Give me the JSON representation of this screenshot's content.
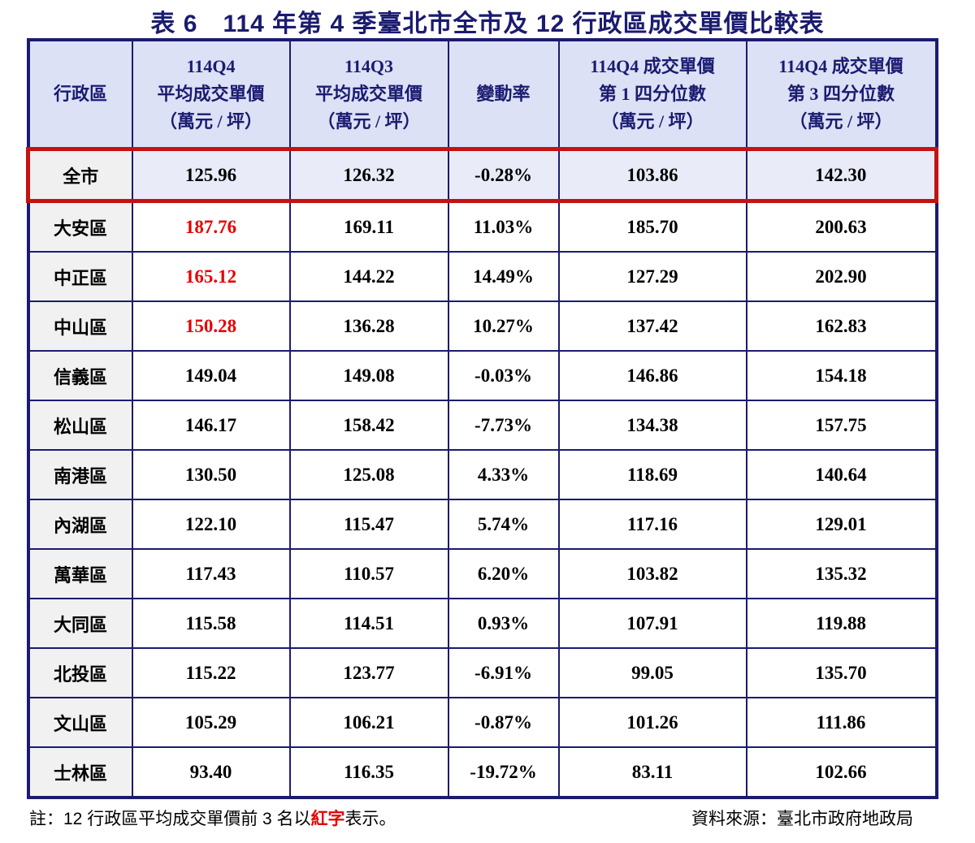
{
  "title": "表 6　114 年第 4 季臺北市全市及 12 行政區成交單價比較表",
  "colors": {
    "navy_border": "#1b1b70",
    "header_bg": "#dce1f6",
    "header_text": "#1b1b70",
    "district_cell_bg": "#f1f1f1",
    "citywide_row_bg": "#e9ecf8",
    "highlight_border_red": "#c41212",
    "top3_text_red": "#e60000"
  },
  "table": {
    "headers": [
      {
        "id": "district",
        "lines": [
          "行政區"
        ]
      },
      {
        "id": "q4-avg-price",
        "lines": [
          "114Q4",
          "平均成交單價",
          "（萬元 / 坪）"
        ]
      },
      {
        "id": "q3-avg-price",
        "lines": [
          "114Q3",
          "平均成交單價",
          "（萬元 / 坪）"
        ]
      },
      {
        "id": "change-rate",
        "lines": [
          "變動率"
        ]
      },
      {
        "id": "q4-first-quartile",
        "lines": [
          "114Q4 成交單價",
          "第 1 四分位數",
          "（萬元 / 坪）"
        ]
      },
      {
        "id": "q4-third-quartile",
        "lines": [
          "114Q4 成交單價",
          "第 3 四分位數",
          "（萬元 / 坪）"
        ]
      }
    ],
    "rows": [
      {
        "district": "全市",
        "q4_avg": "125.96",
        "q3_avg": "126.32",
        "change": "-0.28%",
        "q1_quartile": "103.86",
        "q3_quartile": "142.30",
        "highlight": true,
        "top3": false
      },
      {
        "district": "大安區",
        "q4_avg": "187.76",
        "q3_avg": "169.11",
        "change": "11.03%",
        "q1_quartile": "185.70",
        "q3_quartile": "200.63",
        "highlight": false,
        "top3": true
      },
      {
        "district": "中正區",
        "q4_avg": "165.12",
        "q3_avg": "144.22",
        "change": "14.49%",
        "q1_quartile": "127.29",
        "q3_quartile": "202.90",
        "highlight": false,
        "top3": true
      },
      {
        "district": "中山區",
        "q4_avg": "150.28",
        "q3_avg": "136.28",
        "change": "10.27%",
        "q1_quartile": "137.42",
        "q3_quartile": "162.83",
        "highlight": false,
        "top3": true
      },
      {
        "district": "信義區",
        "q4_avg": "149.04",
        "q3_avg": "149.08",
        "change": "-0.03%",
        "q1_quartile": "146.86",
        "q3_quartile": "154.18",
        "highlight": false,
        "top3": false
      },
      {
        "district": "松山區",
        "q4_avg": "146.17",
        "q3_avg": "158.42",
        "change": "-7.73%",
        "q1_quartile": "134.38",
        "q3_quartile": "157.75",
        "highlight": false,
        "top3": false
      },
      {
        "district": "南港區",
        "q4_avg": "130.50",
        "q3_avg": "125.08",
        "change": "4.33%",
        "q1_quartile": "118.69",
        "q3_quartile": "140.64",
        "highlight": false,
        "top3": false
      },
      {
        "district": "內湖區",
        "q4_avg": "122.10",
        "q3_avg": "115.47",
        "change": "5.74%",
        "q1_quartile": "117.16",
        "q3_quartile": "129.01",
        "highlight": false,
        "top3": false
      },
      {
        "district": "萬華區",
        "q4_avg": "117.43",
        "q3_avg": "110.57",
        "change": "6.20%",
        "q1_quartile": "103.82",
        "q3_quartile": "135.32",
        "highlight": false,
        "top3": false
      },
      {
        "district": "大同區",
        "q4_avg": "115.58",
        "q3_avg": "114.51",
        "change": "0.93%",
        "q1_quartile": "107.91",
        "q3_quartile": "119.88",
        "highlight": false,
        "top3": false
      },
      {
        "district": "北投區",
        "q4_avg": "115.22",
        "q3_avg": "123.77",
        "change": "-6.91%",
        "q1_quartile": "99.05",
        "q3_quartile": "135.70",
        "highlight": false,
        "top3": false
      },
      {
        "district": "文山區",
        "q4_avg": "105.29",
        "q3_avg": "106.21",
        "change": "-0.87%",
        "q1_quartile": "101.26",
        "q3_quartile": "111.86",
        "highlight": false,
        "top3": false
      },
      {
        "district": "士林區",
        "q4_avg": "93.40",
        "q3_avg": "116.35",
        "change": "-19.72%",
        "q1_quartile": "83.11",
        "q3_quartile": "102.66",
        "highlight": false,
        "top3": false
      }
    ]
  },
  "footnote": {
    "prefix": "註：12 行政區平均成交單價前 3 名以",
    "red_word": "紅字",
    "suffix": "表示。"
  },
  "source": "資料來源：臺北市政府地政局"
}
